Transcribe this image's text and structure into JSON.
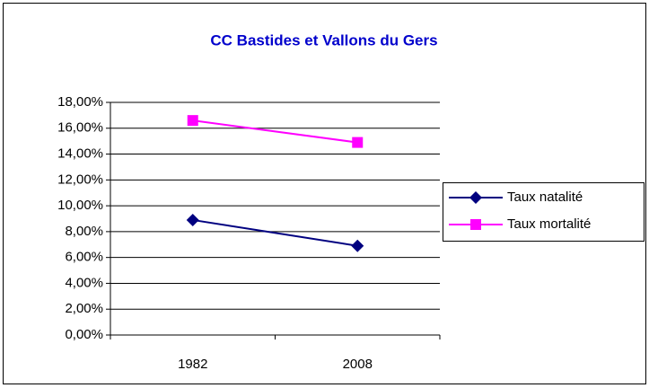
{
  "chart_data": {
    "type": "line",
    "title": "CC Bastides et Vallons du Gers",
    "categories": [
      "1982",
      "2008"
    ],
    "series": [
      {
        "name": "Taux natalité",
        "color": "#000080",
        "marker": "diamond",
        "values": [
          8.9,
          6.9
        ]
      },
      {
        "name": "Taux mortalité",
        "color": "#ff00ff",
        "marker": "square",
        "values": [
          16.6,
          14.9
        ]
      }
    ],
    "ylim": [
      0,
      18
    ],
    "yticks": [
      {
        "value": 0,
        "label": "0,00%"
      },
      {
        "value": 2,
        "label": "2,00%"
      },
      {
        "value": 4,
        "label": "4,00%"
      },
      {
        "value": 6,
        "label": "6,00%"
      },
      {
        "value": 8,
        "label": "8,00%"
      },
      {
        "value": 10,
        "label": "10,00%"
      },
      {
        "value": 12,
        "label": "12,00%"
      },
      {
        "value": 14,
        "label": "14,00%"
      },
      {
        "value": 16,
        "label": "16,00%"
      },
      {
        "value": 18,
        "label": "18,00%"
      }
    ],
    "grid": true,
    "legend": "right"
  }
}
